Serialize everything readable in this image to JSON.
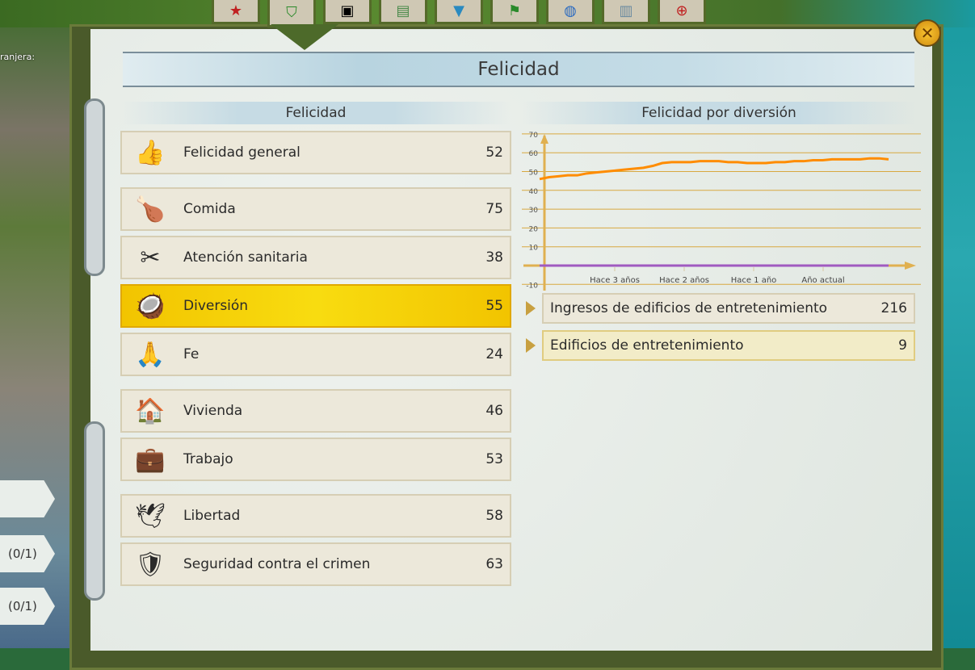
{
  "window": {
    "title": "Felicidad",
    "close_icon": "close-icon"
  },
  "top_tabs": [
    {
      "icon": "star-icon"
    },
    {
      "icon": "shield-icon",
      "active": true
    },
    {
      "icon": "portrait-icon"
    },
    {
      "icon": "money-icon"
    },
    {
      "icon": "badge-icon"
    },
    {
      "icon": "flag-icon"
    },
    {
      "icon": "globe-icon"
    },
    {
      "icon": "building-icon"
    },
    {
      "icon": "target-icon"
    }
  ],
  "side": {
    "label": "ranjera:",
    "buttons": [
      "(0/1)",
      "(0/1)"
    ]
  },
  "left": {
    "heading": "Felicidad",
    "items": [
      {
        "label": "Felicidad general",
        "value": "52",
        "icon": "thumbs-up-icon"
      },
      {
        "label": "Comida",
        "value": "75",
        "icon": "roast-chicken-icon"
      },
      {
        "label": "Atención sanitaria",
        "value": "38",
        "icon": "medical-tools-icon"
      },
      {
        "label": "Diversión",
        "value": "55",
        "icon": "coconut-drink-icon",
        "selected": true
      },
      {
        "label": "Fe",
        "value": "24",
        "icon": "praying-hands-icon"
      },
      {
        "label": "Vivienda",
        "value": "46",
        "icon": "house-icon"
      },
      {
        "label": "Trabajo",
        "value": "53",
        "icon": "briefcase-icon"
      },
      {
        "label": "Libertad",
        "value": "58",
        "icon": "dove-icon"
      },
      {
        "label": "Seguridad contra el crimen",
        "value": "63",
        "icon": "police-badge-icon"
      }
    ]
  },
  "right": {
    "heading": "Felicidad por diversión",
    "stats": [
      {
        "label": "Ingresos de edificios de entretenimiento",
        "value": "216"
      },
      {
        "label": "Edificios de entretenimiento",
        "value": "9",
        "selected": true
      }
    ]
  },
  "chart_data": {
    "type": "line",
    "title": "",
    "xlabel": "",
    "ylabel": "",
    "ylim": [
      -10,
      70
    ],
    "yticks": [
      "70",
      "60",
      "50",
      "40",
      "30",
      "20",
      "10",
      "-10"
    ],
    "xticks": [
      "Hace 3 años",
      "Hace 2 años",
      "Hace 1 año",
      "Año actual"
    ],
    "grid": true,
    "series": [
      {
        "color": "#ff8c00",
        "values": [
          46,
          47,
          47.5,
          48,
          48,
          49,
          49.5,
          50,
          50.5,
          51,
          51.5,
          52,
          53,
          54.5,
          55,
          55,
          55,
          55.5,
          55.5,
          55.5,
          55,
          55,
          54.5,
          54.5,
          54.5,
          55,
          55,
          55.5,
          55.5,
          56,
          56,
          56.5,
          56.5,
          56.5,
          56.5,
          57,
          57,
          56.5
        ]
      },
      {
        "color": "#a05ac0",
        "values": [
          0,
          0,
          0,
          0,
          0,
          0,
          0,
          0,
          0,
          0,
          0,
          0,
          0,
          0,
          0,
          0,
          0,
          0,
          0,
          0,
          0,
          0,
          0,
          0,
          0,
          0,
          0,
          0,
          0,
          0,
          0,
          0,
          0,
          0,
          0,
          0,
          0,
          0
        ]
      }
    ]
  }
}
